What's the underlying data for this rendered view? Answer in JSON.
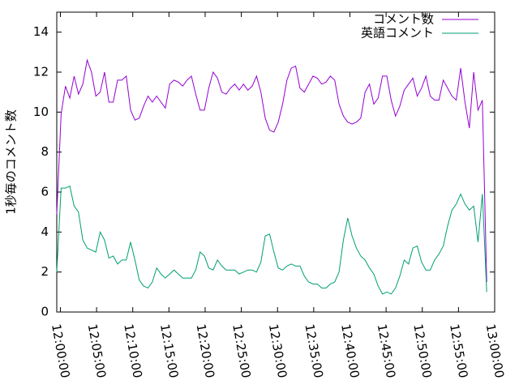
{
  "chart_data": {
    "type": "line",
    "ylabel": "1秒毎のコメント数",
    "xlim": [
      "11:59:30",
      "13:00:00"
    ],
    "xticks": [
      "12:00:00",
      "12:05:00",
      "12:10:00",
      "12:15:00",
      "12:20:00",
      "12:25:00",
      "12:30:00",
      "12:35:00",
      "12:40:00",
      "12:45:00",
      "12:50:00",
      "12:55:00",
      "13:00:00"
    ],
    "ylim": [
      0,
      15
    ],
    "yticks": [
      0,
      2,
      4,
      6,
      8,
      10,
      12,
      14
    ],
    "legend": "top-right",
    "x": [
      "11:59:30",
      "12:00:06",
      "12:00:42",
      "12:01:18",
      "12:01:54",
      "12:02:30",
      "12:03:06",
      "12:03:42",
      "12:04:18",
      "12:04:54",
      "12:05:30",
      "12:06:06",
      "12:06:42",
      "12:07:18",
      "12:07:54",
      "12:08:30",
      "12:09:06",
      "12:09:42",
      "12:10:18",
      "12:10:54",
      "12:11:30",
      "12:12:06",
      "12:12:42",
      "12:13:18",
      "12:13:54",
      "12:14:30",
      "12:15:06",
      "12:15:42",
      "12:16:18",
      "12:16:54",
      "12:17:30",
      "12:18:06",
      "12:18:42",
      "12:19:18",
      "12:19:54",
      "12:20:30",
      "12:21:06",
      "12:21:42",
      "12:22:18",
      "12:22:54",
      "12:23:30",
      "12:24:06",
      "12:24:42",
      "12:25:18",
      "12:25:54",
      "12:26:30",
      "12:27:06",
      "12:27:42",
      "12:28:18",
      "12:28:54",
      "12:29:30",
      "12:30:06",
      "12:30:42",
      "12:31:18",
      "12:31:54",
      "12:32:30",
      "12:33:06",
      "12:33:42",
      "12:34:18",
      "12:34:54",
      "12:35:30",
      "12:36:06",
      "12:36:42",
      "12:37:18",
      "12:37:54",
      "12:38:30",
      "12:39:06",
      "12:39:42",
      "12:40:18",
      "12:40:54",
      "12:41:30",
      "12:42:06",
      "12:42:42",
      "12:43:18",
      "12:43:54",
      "12:44:30",
      "12:45:06",
      "12:45:42",
      "12:46:18",
      "12:46:54",
      "12:47:30",
      "12:48:06",
      "12:48:42",
      "12:49:18",
      "12:49:54",
      "12:50:30",
      "12:51:06",
      "12:51:42",
      "12:52:18",
      "12:52:54",
      "12:53:30",
      "12:54:06",
      "12:54:42",
      "12:55:18",
      "12:55:54",
      "12:56:30",
      "12:57:06",
      "12:57:42",
      "12:58:18",
      "12:58:54"
    ],
    "series": [
      {
        "name": "コメント数",
        "color": "#9400d3",
        "values": [
          4.9,
          9.9,
          11.3,
          10.7,
          11.8,
          10.9,
          11.4,
          12.6,
          12.0,
          10.8,
          11.0,
          12.0,
          10.5,
          10.5,
          11.6,
          11.6,
          11.8,
          10.1,
          9.6,
          9.7,
          10.3,
          10.8,
          10.5,
          10.8,
          10.5,
          10.2,
          11.4,
          11.6,
          11.5,
          11.3,
          11.6,
          11.8,
          10.9,
          10.1,
          10.1,
          11.2,
          12.0,
          11.7,
          11.0,
          10.9,
          11.2,
          11.4,
          11.1,
          11.4,
          11.1,
          11.3,
          11.8,
          11.0,
          9.7,
          9.1,
          9.0,
          9.5,
          10.4,
          11.6,
          12.2,
          12.3,
          11.2,
          11.0,
          11.4,
          11.8,
          11.7,
          11.4,
          11.5,
          11.8,
          11.6,
          10.4,
          9.8,
          9.5,
          9.4,
          9.5,
          9.7,
          11.0,
          11.4,
          10.4,
          10.7,
          11.8,
          11.8,
          10.6,
          9.8,
          10.3,
          11.1,
          11.4,
          11.7,
          10.8,
          11.2,
          11.8,
          10.8,
          10.6,
          10.6,
          11.6,
          11.2,
          10.8,
          10.6,
          12.2,
          10.5,
          9.2,
          12.0,
          10.1,
          10.6,
          1.5
        ]
      },
      {
        "name": "英語コメント",
        "color": "#009e73",
        "values": [
          2.0,
          6.2,
          6.2,
          6.3,
          5.3,
          5.0,
          3.6,
          3.2,
          3.1,
          3.0,
          4.0,
          3.6,
          2.7,
          2.8,
          2.4,
          2.6,
          2.6,
          3.5,
          2.6,
          1.6,
          1.3,
          1.2,
          1.5,
          2.2,
          1.9,
          1.7,
          1.9,
          2.1,
          1.9,
          1.7,
          1.7,
          1.7,
          2.1,
          3.0,
          2.8,
          2.2,
          2.1,
          2.6,
          2.3,
          2.1,
          2.1,
          2.1,
          1.9,
          2.0,
          2.1,
          2.1,
          2.0,
          2.5,
          3.8,
          3.9,
          3.0,
          2.2,
          2.1,
          2.3,
          2.4,
          2.3,
          2.3,
          1.8,
          1.5,
          1.4,
          1.4,
          1.2,
          1.2,
          1.4,
          1.5,
          2.0,
          3.6,
          4.7,
          3.8,
          3.2,
          2.8,
          2.6,
          2.2,
          1.9,
          1.3,
          0.9,
          1.0,
          0.9,
          1.2,
          1.8,
          2.6,
          2.4,
          3.2,
          3.3,
          2.5,
          2.1,
          2.1,
          2.6,
          2.9,
          3.3,
          4.3,
          5.1,
          5.4,
          5.9,
          5.4,
          5.1,
          5.3,
          3.5,
          5.9,
          1.0
        ]
      }
    ]
  }
}
